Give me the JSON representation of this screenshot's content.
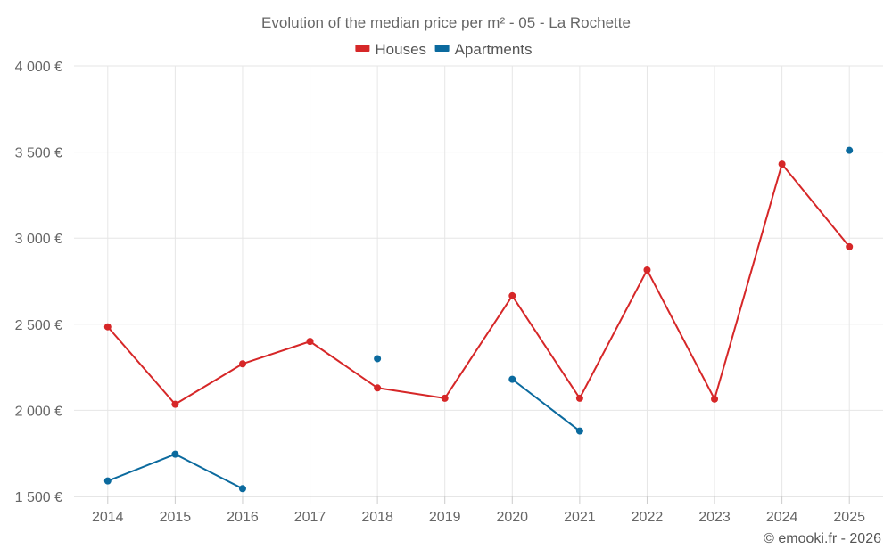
{
  "chart_data": {
    "type": "line",
    "title": "Evolution of the median price per m² - 05 - La Rochette",
    "xlabel": "",
    "ylabel": "",
    "categories": [
      "2014",
      "2015",
      "2016",
      "2017",
      "2018",
      "2019",
      "2020",
      "2021",
      "2022",
      "2023",
      "2024",
      "2025"
    ],
    "ylim": [
      1500,
      4000
    ],
    "yticks": [
      1500,
      2000,
      2500,
      3000,
      3500,
      4000
    ],
    "ytick_labels": [
      "1 500 €",
      "2 000 €",
      "2 500 €",
      "3 000 €",
      "3 500 €",
      "4 000 €"
    ],
    "grid": true,
    "legend_position": "top-center",
    "series": [
      {
        "name": "Houses",
        "color": "#d62728",
        "values": [
          2485,
          2035,
          2270,
          2400,
          2130,
          2070,
          2665,
          2070,
          2815,
          2065,
          3430,
          2950
        ]
      },
      {
        "name": "Apartments",
        "color": "#0b6a9e",
        "values": [
          1590,
          1745,
          1545,
          null,
          2300,
          null,
          2180,
          1880,
          null,
          null,
          null,
          3510
        ]
      }
    ]
  },
  "credit": "© emooki.fr - 2026"
}
